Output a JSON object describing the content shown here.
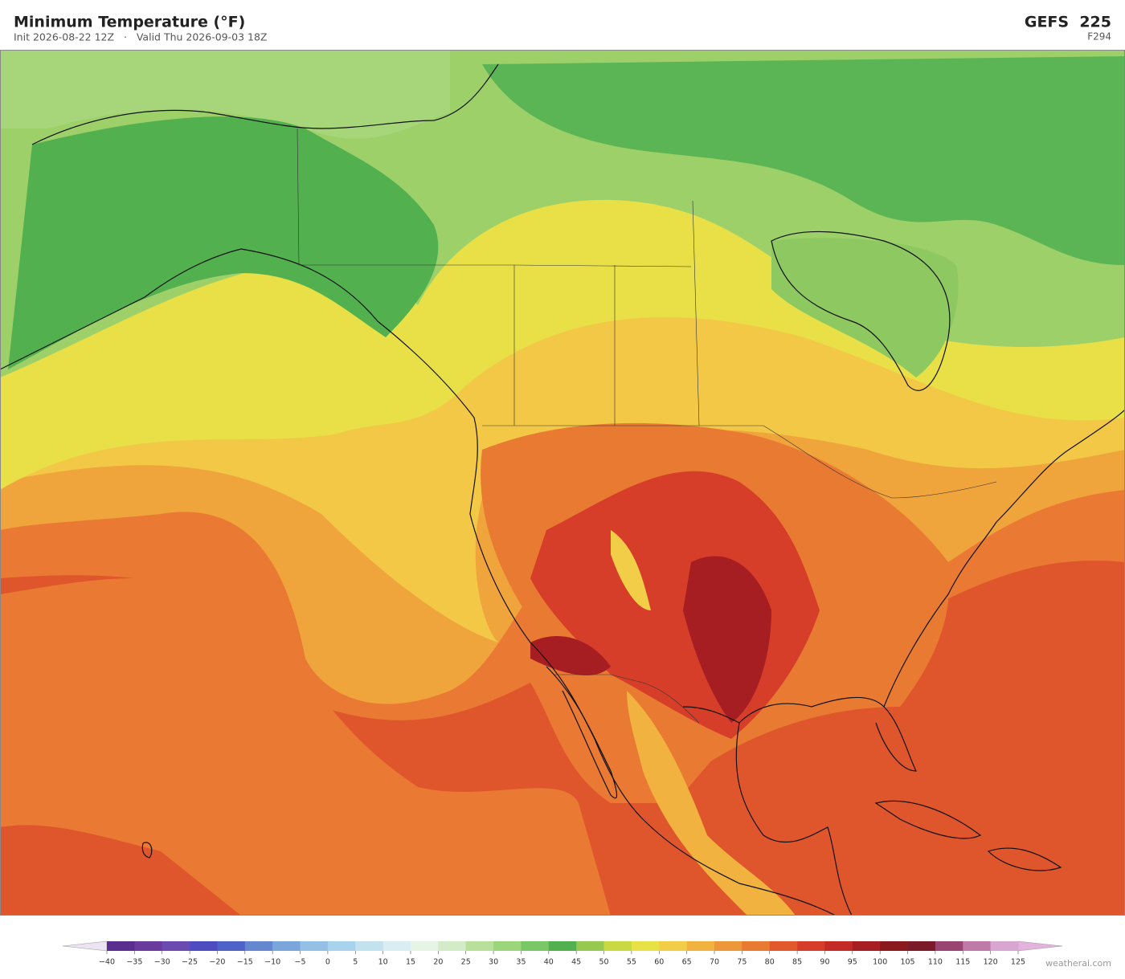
{
  "header": {
    "title": "Minimum Temperature  (°F)",
    "subtitle": "Init 2026-08-22 12Z   ·   Valid Thu 2026-09-03 18Z",
    "model": "GEFS  225",
    "forecast_hour": "F294"
  },
  "colorbar": {
    "ticks": [
      {
        "value": -40,
        "label": "−40"
      },
      {
        "value": -35,
        "label": "−35"
      },
      {
        "value": -30,
        "label": "−30"
      },
      {
        "value": -25,
        "label": "−25"
      },
      {
        "value": -20,
        "label": "−20"
      },
      {
        "value": -15,
        "label": "−15"
      },
      {
        "value": -10,
        "label": "−10"
      },
      {
        "value": -5,
        "label": "−5"
      },
      0,
      5,
      10,
      15,
      20,
      25,
      30,
      35,
      40,
      45,
      50,
      55,
      60,
      65,
      70,
      75,
      80,
      85,
      90,
      95,
      100,
      105,
      110,
      115,
      120,
      125
    ],
    "colors": [
      "#5a2d91",
      "#6a3a9e",
      "#6c4bb0",
      "#4e4cc0",
      "#4e62c8",
      "#6587d0",
      "#7aa6dc",
      "#93c0e4",
      "#a9d3ec",
      "#c3e2f0",
      "#d9eef2",
      "#e6f4e6",
      "#d3ebc7",
      "#b9e09a",
      "#9bd67b",
      "#79c765",
      "#52b04e",
      "#96c950",
      "#c9d942",
      "#e8e246",
      "#f2cd47",
      "#f2b23f",
      "#ee973a",
      "#e97a32",
      "#e2592c",
      "#d63e2a",
      "#c42a26",
      "#a61e22",
      "#8b1a1e",
      "#7b1b2a",
      "#9a4472",
      "#c07aaa",
      "#d9a6d2"
    ]
  },
  "watermark": "weatherai.com"
}
